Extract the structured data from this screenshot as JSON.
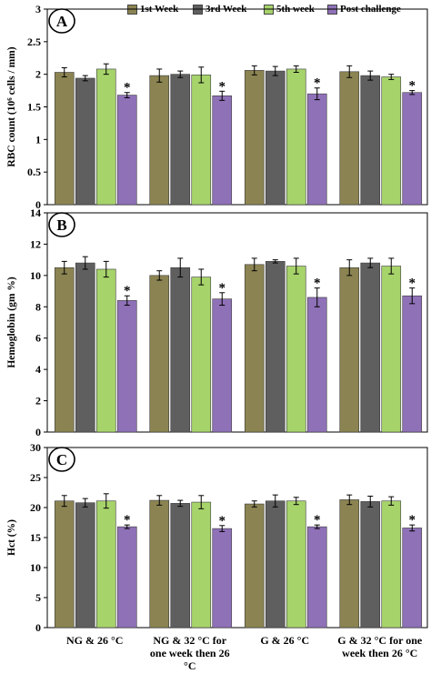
{
  "legend": {
    "items": [
      {
        "label": "1st Week",
        "color": "#8b8452"
      },
      {
        "label": "3rd Week",
        "color": "#5f5f5f"
      },
      {
        "label": "5th week",
        "color": "#a7d36b"
      },
      {
        "label": "Post challenge",
        "color": "#8f71b8"
      }
    ]
  },
  "chart_data": [
    {
      "type": "bar",
      "panel_label": "A",
      "ylabel": "RBC count (10⁶ cells / mm)",
      "ylim": [
        0,
        3
      ],
      "yticks": [
        "0",
        "0.5",
        "1",
        "1.5",
        "2",
        "2.5",
        "3"
      ],
      "categories": [
        "NG & 26 °C",
        "NG & 32 °C for one week then 26 °C",
        "G & 26 °C",
        "G & 32 °C for one week then 26 °C"
      ],
      "series": [
        {
          "name": "1st Week",
          "values": [
            2.03,
            1.98,
            2.06,
            2.04
          ],
          "errors": [
            0.07,
            0.1,
            0.07,
            0.09
          ]
        },
        {
          "name": "3rd Week",
          "values": [
            1.94,
            2.0,
            2.05,
            1.98
          ],
          "errors": [
            0.04,
            0.05,
            0.07,
            0.07
          ]
        },
        {
          "name": "5th week",
          "values": [
            2.08,
            1.99,
            2.08,
            1.96
          ],
          "errors": [
            0.08,
            0.12,
            0.05,
            0.04
          ]
        },
        {
          "name": "Post challenge",
          "values": [
            1.68,
            1.67,
            1.7,
            1.72
          ],
          "errors": [
            0.04,
            0.07,
            0.09,
            0.03
          ]
        }
      ],
      "annotations": [
        "*",
        "*",
        "*",
        "*"
      ],
      "grid": false
    },
    {
      "type": "bar",
      "panel_label": "B",
      "ylabel": "Hemoglobin (gm %)",
      "ylim": [
        0,
        14
      ],
      "yticks": [
        "0",
        "2",
        "4",
        "6",
        "8",
        "10",
        "12",
        "14"
      ],
      "categories": [
        "NG & 26 °C",
        "NG & 32 °C for one week then 26 °C",
        "G & 26 °C",
        "G & 32 °C for one week then 26 °C"
      ],
      "series": [
        {
          "name": "1st Week",
          "values": [
            10.5,
            10.0,
            10.7,
            10.5
          ],
          "errors": [
            0.4,
            0.3,
            0.4,
            0.5
          ]
        },
        {
          "name": "3rd Week",
          "values": [
            10.8,
            10.5,
            10.9,
            10.8
          ],
          "errors": [
            0.4,
            0.6,
            0.1,
            0.3
          ]
        },
        {
          "name": "5th week",
          "values": [
            10.4,
            9.9,
            10.6,
            10.6
          ],
          "errors": [
            0.5,
            0.5,
            0.5,
            0.5
          ]
        },
        {
          "name": "Post challenge",
          "values": [
            8.4,
            8.5,
            8.6,
            8.7
          ],
          "errors": [
            0.3,
            0.4,
            0.6,
            0.5
          ]
        }
      ],
      "annotations": [
        "*",
        "*",
        "*",
        "*"
      ],
      "grid": false
    },
    {
      "type": "bar",
      "panel_label": "C",
      "ylabel": "Hct (%)",
      "ylim": [
        0,
        30
      ],
      "yticks": [
        "0",
        "5",
        "10",
        "15",
        "20",
        "25",
        "30"
      ],
      "categories": [
        "NG & 26 °C",
        "NG & 32 °C for one week then 26 °C",
        "G & 26 °C",
        "G & 32 °C for one week then 26 °C"
      ],
      "series": [
        {
          "name": "1st Week",
          "values": [
            21.1,
            21.2,
            20.6,
            21.3
          ],
          "errors": [
            0.9,
            0.8,
            0.5,
            0.8
          ]
        },
        {
          "name": "3rd Week",
          "values": [
            20.8,
            20.7,
            21.1,
            21.0
          ],
          "errors": [
            0.7,
            0.5,
            1.0,
            0.9
          ]
        },
        {
          "name": "5th week",
          "values": [
            21.1,
            20.9,
            21.1,
            21.1
          ],
          "errors": [
            1.2,
            1.1,
            0.6,
            0.7
          ]
        },
        {
          "name": "Post challenge",
          "values": [
            16.8,
            16.5,
            16.8,
            16.6
          ],
          "errors": [
            0.3,
            0.5,
            0.3,
            0.5
          ]
        }
      ],
      "annotations": [
        "*",
        "*",
        "*",
        "*"
      ],
      "grid": false
    }
  ],
  "xaxis": {
    "category_labels": [
      [
        "NG & 26 °C"
      ],
      [
        "NG & 32 °C for",
        "one week then 26",
        "°C"
      ],
      [
        "G & 26 °C"
      ],
      [
        "G & 32 °C for one",
        "week then 26 °C"
      ]
    ]
  }
}
